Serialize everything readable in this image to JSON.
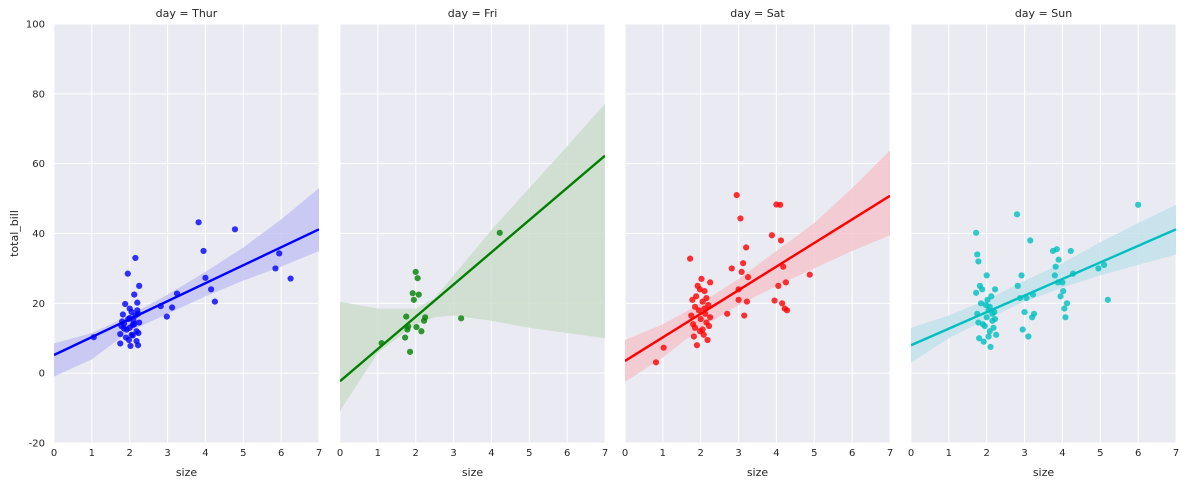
{
  "chart_data": {
    "type": "scatter",
    "grid": true,
    "facet_by": "day",
    "xlabel": "size",
    "ylabel": "total_bill",
    "xlim": [
      0,
      7
    ],
    "ylim": [
      -20,
      100
    ],
    "x_ticks": [
      0,
      1,
      2,
      3,
      4,
      5,
      6,
      7
    ],
    "y_ticks": [
      -20,
      0,
      20,
      40,
      60,
      80,
      100
    ],
    "panels": [
      {
        "title": "day = Thur",
        "color": "#0000FF",
        "band_color": "#C3C3F3",
        "regression": {
          "x": [
            0,
            7
          ],
          "y": [
            5.2,
            41.2
          ]
        },
        "ci_upper": [
          [
            0,
            8.5
          ],
          [
            1,
            11.5
          ],
          [
            2,
            16.5
          ],
          [
            3,
            22.5
          ],
          [
            4,
            29
          ],
          [
            5,
            36
          ],
          [
            6,
            44
          ],
          [
            7,
            53
          ]
        ],
        "ci_lower": [
          [
            0,
            -1
          ],
          [
            1,
            4
          ],
          [
            2,
            12
          ],
          [
            3,
            17
          ],
          [
            4,
            22
          ],
          [
            5,
            26.5
          ],
          [
            6,
            30.5
          ],
          [
            7,
            35
          ]
        ],
        "points": [
          [
            1.05,
            10.3
          ],
          [
            1.78,
            13.5
          ],
          [
            1.82,
            16.8
          ],
          [
            1.75,
            11.2
          ],
          [
            1.85,
            14.2
          ],
          [
            1.88,
            19.8
          ],
          [
            1.75,
            8.5
          ],
          [
            1.92,
            12.5
          ],
          [
            1.95,
            28.5
          ],
          [
            1.96,
            15.5
          ],
          [
            1.98,
            9.5
          ],
          [
            2.0,
            13.0
          ],
          [
            2.02,
            7.8
          ],
          [
            2.05,
            17.5
          ],
          [
            2.08,
            10.8
          ],
          [
            2.1,
            15.0
          ],
          [
            2.12,
            22.5
          ],
          [
            2.15,
            33.0
          ],
          [
            2.18,
            12.0
          ],
          [
            2.2,
            18.0
          ],
          [
            2.22,
            8.0
          ],
          [
            2.25,
            25.0
          ],
          [
            2.25,
            14.5
          ],
          [
            2.23,
            11.5
          ],
          [
            1.8,
            14.8
          ],
          [
            1.85,
            12.8
          ],
          [
            2.08,
            13.8
          ],
          [
            2.15,
            16.5
          ],
          [
            2.2,
            20.2
          ],
          [
            2.18,
            9.2
          ],
          [
            2.0,
            18.5
          ],
          [
            2.05,
            11.0
          ],
          [
            2.0,
            15.8
          ],
          [
            1.9,
            10.2
          ],
          [
            2.12,
            14.0
          ],
          [
            2.22,
            17.0
          ],
          [
            2.82,
            19.2
          ],
          [
            2.98,
            16.2
          ],
          [
            3.12,
            18.8
          ],
          [
            3.25,
            22.8
          ],
          [
            3.82,
            43.2
          ],
          [
            3.95,
            35.0
          ],
          [
            4.0,
            27.3
          ],
          [
            4.15,
            24.0
          ],
          [
            4.25,
            20.5
          ],
          [
            4.78,
            41.2
          ],
          [
            5.85,
            30.0
          ],
          [
            5.95,
            34.3
          ],
          [
            6.25,
            27.1
          ]
        ]
      },
      {
        "title": "day = Fri",
        "color": "#008000",
        "band_color": "#CCDDCC",
        "regression": {
          "x": [
            0,
            7
          ],
          "y": [
            -2.3,
            62.3
          ]
        },
        "ci_upper": [
          [
            0,
            20.5
          ],
          [
            1,
            18.5
          ],
          [
            2,
            18.5
          ],
          [
            2.5,
            21.5
          ],
          [
            3,
            28
          ],
          [
            4,
            41
          ],
          [
            5,
            53
          ],
          [
            6,
            65
          ],
          [
            7,
            77.2
          ]
        ],
        "ci_lower": [
          [
            0,
            -10.8
          ],
          [
            1,
            5.8
          ],
          [
            2,
            14
          ],
          [
            2.5,
            16
          ],
          [
            3,
            16.5
          ],
          [
            4,
            15
          ],
          [
            5,
            13
          ],
          [
            6,
            11.5
          ],
          [
            7,
            10
          ]
        ],
        "points": [
          [
            1.1,
            8.6
          ],
          [
            1.75,
            16.2
          ],
          [
            1.78,
            12.5
          ],
          [
            1.72,
            10.2
          ],
          [
            1.8,
            13.4
          ],
          [
            1.85,
            6.1
          ],
          [
            1.92,
            22.9
          ],
          [
            1.95,
            21.0
          ],
          [
            2.0,
            29.0
          ],
          [
            2.05,
            27.2
          ],
          [
            2.08,
            22.5
          ],
          [
            2.02,
            13.2
          ],
          [
            2.15,
            12.0
          ],
          [
            2.22,
            15.0
          ],
          [
            2.25,
            16.0
          ],
          [
            3.2,
            15.7
          ],
          [
            4.22,
            40.2
          ]
        ]
      },
      {
        "title": "day = Sat",
        "color": "#FF0000",
        "band_color": "#F5C6CC",
        "regression": {
          "x": [
            0,
            7
          ],
          "y": [
            3.5,
            50.8
          ]
        },
        "ci_upper": [
          [
            0,
            9.5
          ],
          [
            1,
            14
          ],
          [
            2,
            20
          ],
          [
            3,
            27
          ],
          [
            4,
            35
          ],
          [
            5,
            43
          ],
          [
            6,
            53
          ],
          [
            7,
            63.8
          ]
        ],
        "ci_lower": [
          [
            0,
            -2.5
          ],
          [
            1,
            4.5
          ],
          [
            2,
            13
          ],
          [
            3,
            19.5
          ],
          [
            4,
            25
          ],
          [
            5,
            30
          ],
          [
            6,
            35
          ],
          [
            7,
            39.5
          ]
        ],
        "points": [
          [
            0.82,
            3.1
          ],
          [
            1.02,
            7.3
          ],
          [
            1.72,
            32.8
          ],
          [
            1.78,
            21.0
          ],
          [
            1.75,
            16.5
          ],
          [
            1.8,
            14.0
          ],
          [
            1.82,
            10.5
          ],
          [
            1.85,
            13.0
          ],
          [
            1.88,
            22.0
          ],
          [
            1.9,
            8.0
          ],
          [
            1.92,
            25.0
          ],
          [
            1.95,
            18.0
          ],
          [
            1.98,
            12.0
          ],
          [
            2.0,
            15.5
          ],
          [
            2.02,
            27.0
          ],
          [
            2.05,
            20.5
          ],
          [
            2.08,
            11.0
          ],
          [
            2.1,
            23.5
          ],
          [
            2.12,
            17.0
          ],
          [
            2.15,
            14.5
          ],
          [
            2.18,
            9.5
          ],
          [
            2.2,
            19.5
          ],
          [
            2.22,
            13.5
          ],
          [
            2.25,
            26.0
          ],
          [
            2.25,
            16.0
          ],
          [
            1.85,
            19.0
          ],
          [
            1.98,
            24.0
          ],
          [
            2.15,
            21.5
          ],
          [
            2.05,
            12.5
          ],
          [
            2.1,
            18.5
          ],
          [
            2.7,
            17.0
          ],
          [
            2.82,
            30.0
          ],
          [
            2.95,
            51.0
          ],
          [
            3.0,
            24.0
          ],
          [
            3.05,
            44.3
          ],
          [
            3.08,
            29.0
          ],
          [
            3.12,
            31.5
          ],
          [
            3.15,
            16.5
          ],
          [
            3.2,
            36.0
          ],
          [
            3.22,
            20.5
          ],
          [
            3.25,
            27.5
          ],
          [
            3.0,
            21.0
          ],
          [
            3.88,
            39.5
          ],
          [
            3.95,
            20.8
          ],
          [
            4.0,
            48.3
          ],
          [
            4.05,
            25.0
          ],
          [
            4.1,
            48.2
          ],
          [
            4.12,
            38.0
          ],
          [
            4.15,
            20.0
          ],
          [
            4.18,
            30.5
          ],
          [
            4.22,
            18.5
          ],
          [
            4.25,
            26.0
          ],
          [
            4.28,
            18.0
          ],
          [
            4.88,
            28.2
          ]
        ]
      },
      {
        "title": "day = Sun",
        "color": "#00BFBF",
        "band_color": "#C3E2EB",
        "regression": {
          "x": [
            0,
            7
          ],
          "y": [
            8.0,
            41.2
          ]
        },
        "ci_upper": [
          [
            0,
            13
          ],
          [
            1,
            16.5
          ],
          [
            2,
            21
          ],
          [
            3,
            26.5
          ],
          [
            4,
            31.5
          ],
          [
            5,
            37.5
          ],
          [
            6,
            43
          ],
          [
            7,
            48.2
          ]
        ],
        "ci_lower": [
          [
            0,
            3
          ],
          [
            1,
            10
          ],
          [
            2,
            15.5
          ],
          [
            3,
            20.5
          ],
          [
            4,
            24.5
          ],
          [
            5,
            28
          ],
          [
            6,
            31
          ],
          [
            7,
            34
          ]
        ],
        "points": [
          [
            1.72,
            40.2
          ],
          [
            1.75,
            34.0
          ],
          [
            1.78,
            32.0
          ],
          [
            1.72,
            23.0
          ],
          [
            1.75,
            17.0
          ],
          [
            1.78,
            14.5
          ],
          [
            1.8,
            10.0
          ],
          [
            1.85,
            20.0
          ],
          [
            1.88,
            24.0
          ],
          [
            1.92,
            9.0
          ],
          [
            1.95,
            13.5
          ],
          [
            1.98,
            19.5
          ],
          [
            2.0,
            16.0
          ],
          [
            2.02,
            21.0
          ],
          [
            2.05,
            18.0
          ],
          [
            2.08,
            12.0
          ],
          [
            2.1,
            7.5
          ],
          [
            2.12,
            22.0
          ],
          [
            2.15,
            15.0
          ],
          [
            2.18,
            13.0
          ],
          [
            2.2,
            17.5
          ],
          [
            2.22,
            24.0
          ],
          [
            2.25,
            11.0
          ],
          [
            1.82,
            25.0
          ],
          [
            2.0,
            28.0
          ],
          [
            2.15,
            17.0
          ],
          [
            2.08,
            19.0
          ],
          [
            1.9,
            14.0
          ],
          [
            2.22,
            15.5
          ],
          [
            2.05,
            10.5
          ],
          [
            2.8,
            45.5
          ],
          [
            2.82,
            25.0
          ],
          [
            2.88,
            21.5
          ],
          [
            2.92,
            28.0
          ],
          [
            3.0,
            17.5
          ],
          [
            3.05,
            21.5
          ],
          [
            3.1,
            10.5
          ],
          [
            3.15,
            38.0
          ],
          [
            3.2,
            16.0
          ],
          [
            3.22,
            22.5
          ],
          [
            3.25,
            17.0
          ],
          [
            2.95,
            12.5
          ],
          [
            3.75,
            35.0
          ],
          [
            3.8,
            28.0
          ],
          [
            3.82,
            30.5
          ],
          [
            3.85,
            35.5
          ],
          [
            3.88,
            26.0
          ],
          [
            3.9,
            32.5
          ],
          [
            3.95,
            22.0
          ],
          [
            4.0,
            26.0
          ],
          [
            4.02,
            23.5
          ],
          [
            4.05,
            18.5
          ],
          [
            4.08,
            16.0
          ],
          [
            4.12,
            20.0
          ],
          [
            4.22,
            35.0
          ],
          [
            4.28,
            28.5
          ],
          [
            4.95,
            30.0
          ],
          [
            5.1,
            31.0
          ],
          [
            5.2,
            21.0
          ],
          [
            6.0,
            48.2
          ]
        ]
      }
    ]
  }
}
